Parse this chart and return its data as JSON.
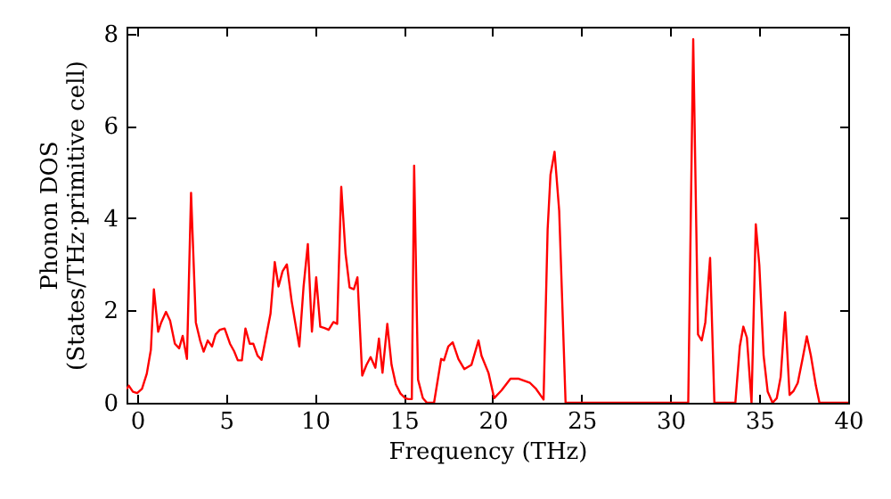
{
  "chart_data": {
    "type": "line",
    "xlabel": "Frequency (THz)",
    "ylabel": "Phonon DOS\n(States/THz·primitive cell)",
    "xlim": [
      -0.6,
      40
    ],
    "ylim": [
      0,
      8.15
    ],
    "xticks": [
      0,
      5,
      10,
      15,
      20,
      25,
      30,
      35,
      40
    ],
    "yticks": [
      0,
      2,
      4,
      6,
      8
    ],
    "grid": false,
    "marker": "none",
    "line_style": "solid",
    "series": [
      {
        "color": "#ff0000",
        "x": [
          -0.6,
          -0.47,
          -0.24,
          0,
          0.27,
          0.54,
          0.77,
          0.94,
          1.18,
          1.35,
          1.62,
          1.85,
          2.12,
          2.36,
          2.56,
          2.8,
          3.03,
          3.3,
          3.54,
          3.74,
          3.97,
          4.21,
          4.41,
          4.65,
          4.92,
          5.22,
          5.45,
          5.66,
          5.89,
          6.09,
          6.33,
          6.53,
          6.77,
          7.0,
          7.24,
          7.5,
          7.74,
          7.95,
          8.18,
          8.42,
          8.69,
          8.89,
          9.12,
          9.36,
          9.6,
          9.83,
          10.07,
          10.3,
          10.54,
          10.77,
          11.04,
          11.25,
          11.48,
          11.72,
          11.95,
          12.19,
          12.39,
          12.66,
          12.9,
          13.13,
          13.4,
          13.6,
          13.8,
          14.07,
          14.31,
          14.55,
          14.81,
          15.08,
          15.25,
          15.45,
          15.58,
          15.8,
          16.07,
          16.3,
          16.7,
          17.1,
          17.26,
          17.5,
          17.75,
          18.07,
          18.4,
          18.8,
          19.2,
          19.37,
          19.76,
          20.08,
          20.5,
          21,
          21.47,
          22.1,
          22.44,
          22.86,
          23.09,
          23.25,
          23.48,
          23.74,
          24.1,
          31.0,
          31.28,
          31.55,
          31.76,
          31.96,
          32.23,
          32.47,
          33.65,
          33.9,
          34.1,
          34.3,
          34.56,
          34.8,
          35.0,
          35.24,
          35.47,
          35.74,
          35.98,
          36.2,
          36.45,
          36.7,
          36.93,
          37.16,
          37.43,
          37.67,
          37.9,
          38.18,
          38.38,
          40
        ],
        "values": [
          0.3,
          0.37,
          0.24,
          0.21,
          0.3,
          0.63,
          1.15,
          2.46,
          1.54,
          1.74,
          1.97,
          1.78,
          1.28,
          1.18,
          1.45,
          0.95,
          4.55,
          1.74,
          1.35,
          1.11,
          1.35,
          1.22,
          1.48,
          1.58,
          1.61,
          1.28,
          1.12,
          0.92,
          0.92,
          1.61,
          1.28,
          1.28,
          1.02,
          0.93,
          1.41,
          1.93,
          3.05,
          2.52,
          2.85,
          3.0,
          2.2,
          1.74,
          1.22,
          2.52,
          3.44,
          1.54,
          2.72,
          1.65,
          1.62,
          1.58,
          1.75,
          1.71,
          4.68,
          3.24,
          2.5,
          2.46,
          2.72,
          0.59,
          0.82,
          0.99,
          0.76,
          1.39,
          0.65,
          1.71,
          0.82,
          0.4,
          0.2,
          0.1,
          0.08,
          0.08,
          5.14,
          0.5,
          0.1,
          0,
          0,
          0.95,
          0.92,
          1.22,
          1.31,
          0.95,
          0.73,
          0.82,
          1.35,
          1.02,
          0.65,
          0.1,
          0.27,
          0.52,
          0.52,
          0.43,
          0.3,
          0.07,
          3.76,
          4.94,
          5.44,
          4.16,
          0,
          0,
          7.88,
          1.48,
          1.35,
          1.74,
          3.14,
          0,
          0,
          1.22,
          1.65,
          1.41,
          0,
          3.87,
          2.98,
          1.02,
          0.24,
          0,
          0.1,
          0.56,
          1.96,
          0.17,
          0.26,
          0.43,
          0.95,
          1.44,
          1.02,
          0.37,
          0,
          0
        ]
      }
    ]
  }
}
